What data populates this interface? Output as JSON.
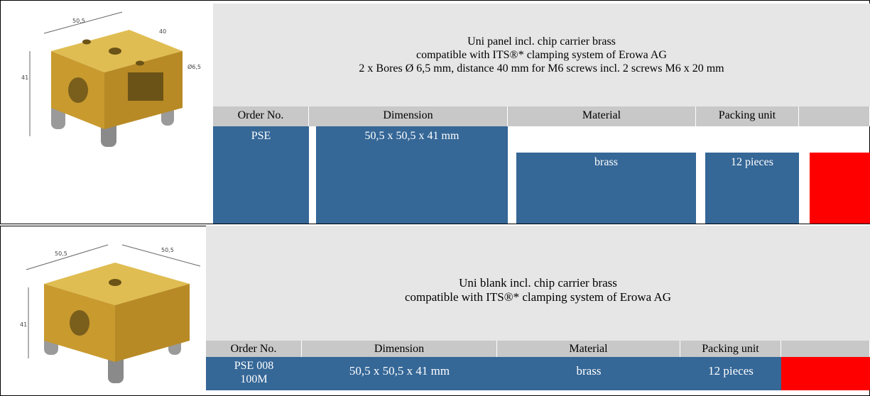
{
  "products": [
    {
      "description": [
        "Uni panel incl. chip carrier  brass",
        "compatible with ITS®* clamping system of Erowa AG",
        "2 x Bores Ø 6,5 mm, distance 40 mm for M6 screws incl. 2 screws M6 x 20 mm"
      ],
      "headers": [
        "Order No.",
        "Dimension",
        "Material",
        "Packing unit"
      ],
      "row": [
        "PSE",
        "50,5 x 50,5 x 41 mm",
        "brass",
        "12 pieces"
      ],
      "drawing_labels": [
        "50,5",
        "40",
        "41",
        "Ø6,5"
      ]
    },
    {
      "description": [
        "Uni blank incl. chip carrier  brass",
        "compatible with ITS®* clamping system of Erowa AG"
      ],
      "headers": [
        "Order No.",
        "Dimension",
        "Material",
        "Packing unit"
      ],
      "row": [
        "PSE 008 100M",
        "50,5 x 50,5 x 41 mm",
        "brass",
        "12 pieces"
      ],
      "drawing_labels": [
        "50,5",
        "50,5",
        "41"
      ]
    }
  ]
}
